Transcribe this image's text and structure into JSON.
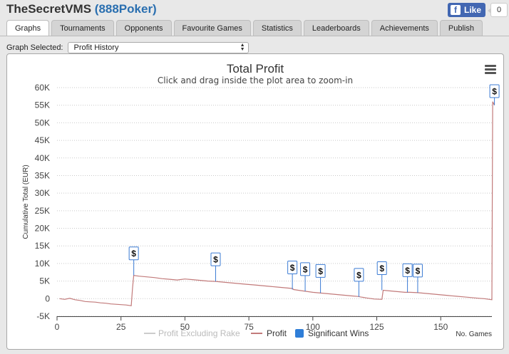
{
  "header": {
    "user": "TheSecretVMS",
    "site": "(888Poker)"
  },
  "facebook": {
    "like_label": "Like",
    "count": "0",
    "logo_letter": "f"
  },
  "tabs": [
    "Graphs",
    "Tournaments",
    "Opponents",
    "Favourite Games",
    "Statistics",
    "Leaderboards",
    "Achievements",
    "Publish"
  ],
  "active_tab": "Graphs",
  "graph_select": {
    "label": "Graph Selected:",
    "value": "Profit History"
  },
  "icons": {
    "menu": "hamburger-menu-icon",
    "marker": "dollar-flag-icon"
  },
  "colors": {
    "profit": "#c27a7a",
    "excl_rake": "#cccccc",
    "significant": "#2f7ed8"
  },
  "chart_data": {
    "type": "line",
    "title": "Total Profit",
    "subtitle": "Click and drag inside the plot area to zoom-in",
    "ylabel": "Cumulative Total (EUR)",
    "xlabel": "No. Games",
    "ylim": [
      -5000,
      60000
    ],
    "xlim": [
      0,
      170
    ],
    "y_ticks": [
      "-5K",
      "0",
      "5K",
      "10K",
      "15K",
      "20K",
      "25K",
      "30K",
      "35K",
      "40K",
      "45K",
      "50K",
      "55K",
      "60K"
    ],
    "y_tick_values": [
      -5000,
      0,
      5000,
      10000,
      15000,
      20000,
      25000,
      30000,
      35000,
      40000,
      45000,
      50000,
      55000,
      60000
    ],
    "x_ticks": [
      "0",
      "25",
      "50",
      "75",
      "100",
      "125",
      "150"
    ],
    "x_tick_values": [
      0,
      25,
      50,
      75,
      100,
      125,
      150
    ],
    "legend": [
      "Profit Excluding Rake",
      "Profit",
      "Significant Wins"
    ],
    "series": [
      {
        "name": "Profit",
        "x": [
          1,
          3,
          5,
          7,
          9,
          11,
          13,
          15,
          17,
          19,
          21,
          23,
          25,
          27,
          29,
          29.5,
          30,
          32,
          35,
          38,
          41,
          44,
          47,
          50,
          53,
          56,
          59,
          62,
          65,
          68,
          71,
          74,
          77,
          80,
          83,
          86,
          89,
          92,
          92.5,
          95,
          97,
          100,
          103,
          106,
          109,
          112,
          115,
          118,
          118.5,
          121,
          124,
          127,
          127.5,
          130,
          133,
          136,
          138,
          141,
          144,
          147,
          150,
          153,
          156,
          159,
          162,
          165,
          167,
          169,
          170,
          170.3,
          171
        ],
        "y": [
          0,
          -200,
          100,
          -300,
          -500,
          -800,
          -900,
          -1000,
          -1200,
          -1300,
          -1500,
          -1600,
          -1700,
          -1800,
          -2000,
          3000,
          6600,
          6400,
          6200,
          6000,
          5700,
          5500,
          5300,
          5600,
          5400,
          5200,
          5000,
          4900,
          4700,
          4500,
          4300,
          4100,
          3900,
          3700,
          3500,
          3300,
          3100,
          2900,
          2600,
          2300,
          2100,
          1800,
          1600,
          1400,
          1200,
          1000,
          800,
          600,
          500,
          200,
          -100,
          -200,
          2400,
          2200,
          2000,
          1800,
          1800,
          1700,
          1500,
          1300,
          1100,
          900,
          700,
          500,
          300,
          100,
          0,
          -200,
          -300,
          56000,
          55000
        ]
      }
    ],
    "significant_wins": [
      {
        "x": 30,
        "y": 6600,
        "label": "$"
      },
      {
        "x": 62,
        "y": 4900,
        "label": "$"
      },
      {
        "x": 92,
        "y": 2600,
        "label": "$"
      },
      {
        "x": 97,
        "y": 2100,
        "label": "$"
      },
      {
        "x": 103,
        "y": 1600,
        "label": "$"
      },
      {
        "x": 118,
        "y": 500,
        "label": "$"
      },
      {
        "x": 127,
        "y": 2400,
        "label": "$"
      },
      {
        "x": 137,
        "y": 1800,
        "label": "$"
      },
      {
        "x": 141,
        "y": 1700,
        "label": "$"
      },
      {
        "x": 171,
        "y": 55000,
        "label": "$"
      }
    ]
  }
}
